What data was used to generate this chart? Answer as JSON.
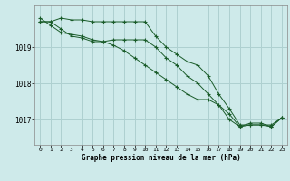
{
  "xlabel": "Graphe pression niveau de la mer (hPa)",
  "background_color": "#ceeaea",
  "grid_color": "#aed0d0",
  "line_color": "#1a5c2a",
  "ylim": [
    1016.3,
    1020.15
  ],
  "xlim": [
    -0.5,
    23.5
  ],
  "yticks": [
    1017,
    1018,
    1019
  ],
  "xticks": [
    0,
    1,
    2,
    3,
    4,
    5,
    6,
    7,
    8,
    9,
    10,
    11,
    12,
    13,
    14,
    15,
    16,
    17,
    18,
    19,
    20,
    21,
    22,
    23
  ],
  "series": [
    [
      1019.7,
      1019.7,
      1019.8,
      1019.75,
      1019.75,
      1019.7,
      1019.7,
      1019.7,
      1019.7,
      1019.7,
      1019.7,
      1019.3,
      1019.0,
      1018.8,
      1018.6,
      1018.5,
      1018.2,
      1017.7,
      1017.3,
      1016.85,
      1016.85,
      1016.85,
      1016.85,
      1017.05
    ],
    [
      1019.7,
      1019.7,
      1019.5,
      1019.3,
      1019.25,
      1019.15,
      1019.15,
      1019.2,
      1019.2,
      1019.2,
      1019.2,
      1019.0,
      1018.7,
      1018.5,
      1018.2,
      1018.0,
      1017.7,
      1017.4,
      1017.0,
      1016.8,
      1016.9,
      1016.9,
      1016.8,
      1017.05
    ],
    [
      1019.8,
      1019.6,
      1019.4,
      1019.35,
      1019.3,
      1019.2,
      1019.15,
      1019.05,
      1018.9,
      1018.7,
      1018.5,
      1018.3,
      1018.1,
      1017.9,
      1017.7,
      1017.55,
      1017.55,
      1017.4,
      1017.15,
      1016.8,
      1016.85,
      1016.85,
      1016.8,
      1017.05
    ]
  ]
}
